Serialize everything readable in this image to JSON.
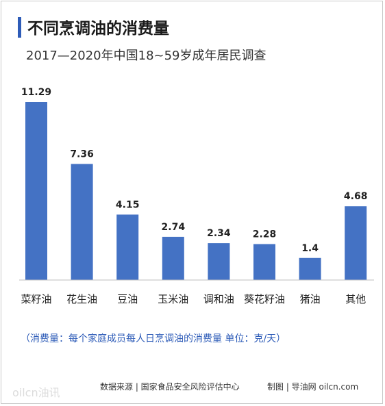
{
  "chart_data": {
    "type": "bar",
    "title": "不同烹调油的消费量",
    "subtitle": "2017—2020年中国18~59岁成年居民调查",
    "categories": [
      "菜籽油",
      "花生油",
      "豆油",
      "玉米油",
      "调和油",
      "葵花籽油",
      "猪油",
      "其他"
    ],
    "values": [
      11.29,
      7.36,
      4.15,
      2.74,
      2.34,
      2.28,
      1.4,
      4.68
    ],
    "value_labels": [
      "11.29",
      "7.36",
      "4.15",
      "2.74",
      "2.34",
      "2.28",
      "1.4",
      "4.68"
    ],
    "ylim": [
      0,
      11.29
    ],
    "bar_color": "#4472c4",
    "grid": false
  },
  "note": "（消费量：每个家庭成员每人日烹调油的消费量 单位：克/天）",
  "source": "数据来源 | 国家食品安全风险评估中心",
  "credit": "制图 | 导油网 oilcn.com",
  "watermark": "oilcn油讯",
  "colors": {
    "accent": "#2e5cb8",
    "bar": "#4472c4"
  }
}
